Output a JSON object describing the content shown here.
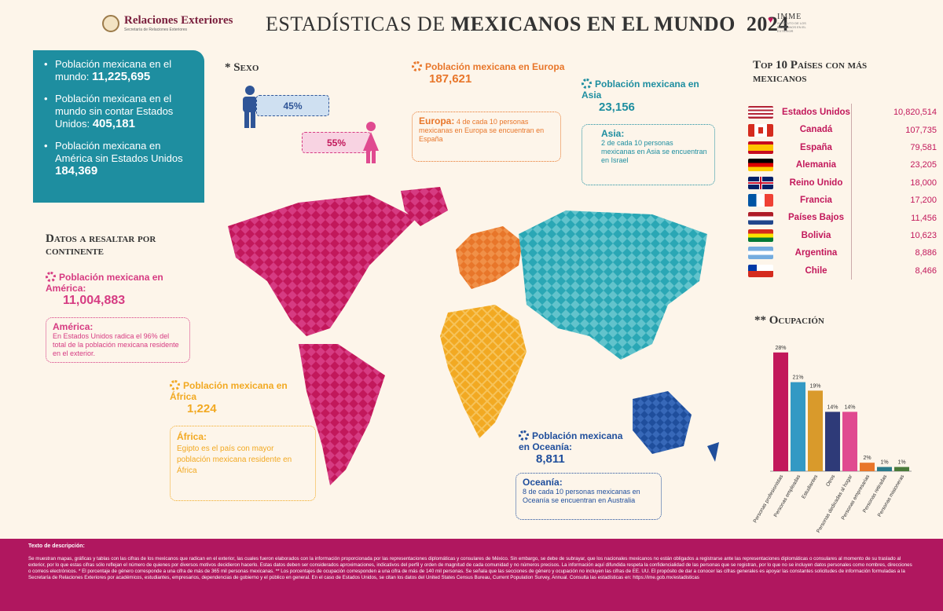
{
  "header": {
    "logo_name": "Relaciones Exteriores",
    "logo_sub": "Secretaría de Relaciones Exteriores",
    "title_light": "ESTADÍSTICAS DE ",
    "title_bold": "MEXICANOS EN EL MUNDO",
    "year": "2024",
    "imme_name": "IMME",
    "imme_sub": "INSTITUTO DE LOS MEXICANOS EN EL EXTERIOR"
  },
  "summary": [
    {
      "label": "Población mexicana en el mundo:",
      "value": "11,225,695"
    },
    {
      "label": "Población mexicana en el mundo sin contar Estados Unidos:",
      "value": "405,181"
    },
    {
      "label": "Población mexicana en América sin Estados Unidos",
      "value": "184,369"
    }
  ],
  "sexo": {
    "title": "* Sexo",
    "male_pct": "45%",
    "female_pct": "55%",
    "male_color": "#2f5597",
    "female_color": "#e04a90"
  },
  "datos_title": "Datos a resaltar por continente",
  "continents": {
    "america": {
      "label": "Población mexicana en América:",
      "value": "11,004,883",
      "note_title": "América:",
      "note": "En Estados Unidos radica el 96% del total de la población mexicana residente en el exterior.",
      "color": "#d63b82"
    },
    "africa": {
      "label": "Población mexicana en África",
      "value": "1,224",
      "note_title": "África:",
      "note": "Egipto es el país con mayor población mexicana residente en África",
      "color": "#f2a922"
    },
    "europa": {
      "label": "Población mexicana en Europa",
      "value": "187,621",
      "note_title": "Europa:",
      "note": "4 de cada 10 personas mexicanas en Europa se encuentran en España",
      "color": "#e8762a"
    },
    "asia": {
      "label": "Población mexicana en Asia",
      "value": "23,156",
      "note_title": "Asia:",
      "note": "2 de cada 10 personas mexicanas en Asia se encuentran en Israel",
      "color": "#1e8ea0"
    },
    "oceania": {
      "label": "Población mexicana en Oceanía:",
      "value": "8,811",
      "note_title": "Oceanía:",
      "note": "8 de cada 10 personas mexicanas en Oceanía se encuentran en Australia",
      "color": "#1f4e9c"
    }
  },
  "top10": {
    "title": "Top 10 Países con más mexicanos",
    "rows": [
      {
        "country": "Estados Unidos",
        "value": "10,820,514",
        "flag": "us"
      },
      {
        "country": "Canadá",
        "value": "107,735",
        "flag": "ca"
      },
      {
        "country": "España",
        "value": "79,581",
        "flag": "es"
      },
      {
        "country": "Alemania",
        "value": "23,205",
        "flag": "de"
      },
      {
        "country": "Reino Unido",
        "value": "18,000",
        "flag": "uk"
      },
      {
        "country": "Francia",
        "value": "17,200",
        "flag": "fr"
      },
      {
        "country": "Países Bajos",
        "value": "11,456",
        "flag": "nl"
      },
      {
        "country": "Bolivia",
        "value": "10,623",
        "flag": "bo"
      },
      {
        "country": "Argentina",
        "value": "8,886",
        "flag": "ar"
      },
      {
        "country": "Chile",
        "value": "8,466",
        "flag": "cl"
      }
    ]
  },
  "ocupacion_title": "** Ocupación",
  "chart_data": {
    "type": "bar",
    "categories": [
      "Personas profesionistas",
      "Personas empleadas",
      "Estudiantes",
      "Otros",
      "Personas dedicadas al hogar",
      "Personas empresarias",
      "Personas retiradas",
      "Personas misioneras"
    ],
    "values": [
      28,
      21,
      19,
      14,
      14,
      2,
      1,
      1
    ],
    "value_labels": [
      "28%",
      "21%",
      "19%",
      "14%",
      "14%",
      "2%",
      "1%",
      "1%"
    ],
    "colors": [
      "#c2185b",
      "#3399c4",
      "#d99a2b",
      "#2e3a78",
      "#e04a90",
      "#e8762a",
      "#2a7a8a",
      "#4a7a3a"
    ],
    "ylim": [
      0,
      30
    ]
  },
  "footer": {
    "title": "Texto de descripción:",
    "body": "Se muestran mapas, gráficas y tablas con las cifras de los mexicanos que radican en el exterior, las cuales fueron elaborados con la información proporcionada por las representaciones diplomáticas y consulares de México. Sin embargo, se debe de subrayar, que los nacionales mexicanos no están obligados a registrarse ante las representaciones diplomáticas o consulares al momento de su traslado al exterior, por lo que estas cifras sólo reflejan el número de quienes por diversos motivos decidieron hacerlo. Estas datos deben ser considerados aproximaciones, indicativos del perfil y orden de magnitud de cada comunidad y no números precisos. La información aquí difundida respeta la confidencialidad de las personas que se registran, por lo que no se incluyen datos personales como nombres, direcciones o correos electrónicos. * El porcentaje de género corresponde a una cifra de más de 365 mil personas mexicanas. ** Los porcentajes de ocupación corresponden a una cifra de más de 140 mil personas. Se señala que las secciones de género y ocupación no incluyen las cifras de EE. UU. El propósito de dar a conocer las cifras generales es apoyar las constantes solicitudes de información formuladas a la Secretaría de Relaciones Exteriores por académicos, estudiantes, empresarios, dependencias de gobierno y el público en general. En el caso de Estados Unidos, se citan los datos del United States Census Bureau, Current Population Survey, Annual. Consulta las estadísticas en: https://ime.gob.mx/estadisticas"
  }
}
